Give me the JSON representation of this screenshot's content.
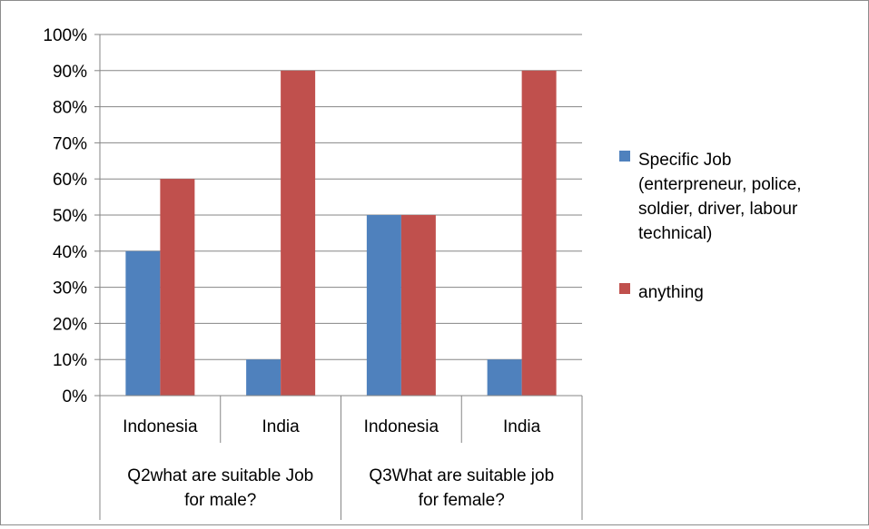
{
  "chart_data": {
    "type": "bar",
    "categories": [
      "Indonesia",
      "India",
      "Indonesia",
      "India"
    ],
    "groups": [
      {
        "label_lines": [
          "Q2what are suitable Job",
          "for male?"
        ],
        "span": [
          0,
          2
        ]
      },
      {
        "label_lines": [
          "Q3What are suitable job",
          "for female?"
        ],
        "span": [
          2,
          4
        ]
      }
    ],
    "series": [
      {
        "name_lines": [
          "Specific Job",
          "(enterpreneur, police,",
          "soldier, driver, labour",
          "technical)"
        ],
        "color": "#4f81bd",
        "values": [
          40,
          10,
          50,
          10
        ]
      },
      {
        "name_lines": [
          "anything"
        ],
        "color": "#c0504d",
        "values": [
          60,
          90,
          50,
          90
        ]
      }
    ],
    "ylim": [
      0,
      100
    ],
    "yticks": [
      "0%",
      "10%",
      "20%",
      "30%",
      "40%",
      "50%",
      "60%",
      "70%",
      "80%",
      "90%",
      "100%"
    ],
    "grid": true,
    "legend_position": "right"
  }
}
